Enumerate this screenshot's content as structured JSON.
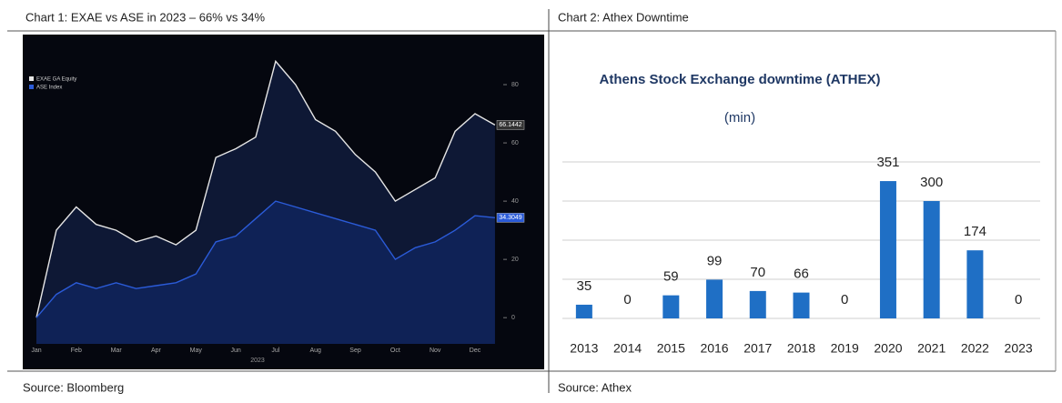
{
  "chart_data": [
    {
      "type": "line",
      "title": "Chart 1: EXAE vs ASE in 2023 – 66% vs 34%",
      "source": "Source: Bloomberg",
      "x_label": "2023",
      "categories": [
        "Jan",
        null,
        "Feb",
        null,
        "Mar",
        null,
        "Apr",
        null,
        "May",
        null,
        "Jun",
        null,
        "Jul",
        null,
        "Aug",
        null,
        "Sep",
        null,
        "Oct",
        null,
        "Nov",
        null,
        "Dec",
        null
      ],
      "ylim": [
        -9,
        95
      ],
      "yticks": [
        0,
        20,
        40,
        60,
        80
      ],
      "series": [
        {
          "name": "EXAE GA Equity",
          "color": "#e6e6e6",
          "values": [
            0,
            30,
            38,
            32,
            30,
            26,
            28,
            25,
            30,
            55,
            58,
            62,
            88,
            80,
            68,
            64,
            56,
            50,
            40,
            44,
            48,
            64,
            70,
            66.1442
          ]
        },
        {
          "name": "ASE Index",
          "color": "#2b5bd8",
          "values": [
            0,
            8,
            12,
            10,
            12,
            10,
            11,
            12,
            15,
            26,
            28,
            34,
            40,
            38,
            36,
            34,
            32,
            30,
            20,
            24,
            26,
            30,
            35,
            34.3049
          ]
        }
      ]
    },
    {
      "type": "bar",
      "header": "Chart 2: Athex Downtime",
      "title": "Athens Stock Exchange downtime (ATHEX)",
      "subtitle": "(min)",
      "source": "Source: Athex",
      "categories": [
        "2013",
        "2014",
        "2015",
        "2016",
        "2017",
        "2018",
        "2019",
        "2020",
        "2021",
        "2022",
        "2023"
      ],
      "values": [
        35,
        0,
        59,
        99,
        70,
        66,
        0,
        351,
        300,
        174,
        0
      ],
      "color": "#1f6fc5",
      "ylim": [
        0,
        400
      ],
      "yticks": [
        0,
        100,
        200,
        300,
        400
      ],
      "grid": true,
      "tick_labels": false
    }
  ]
}
